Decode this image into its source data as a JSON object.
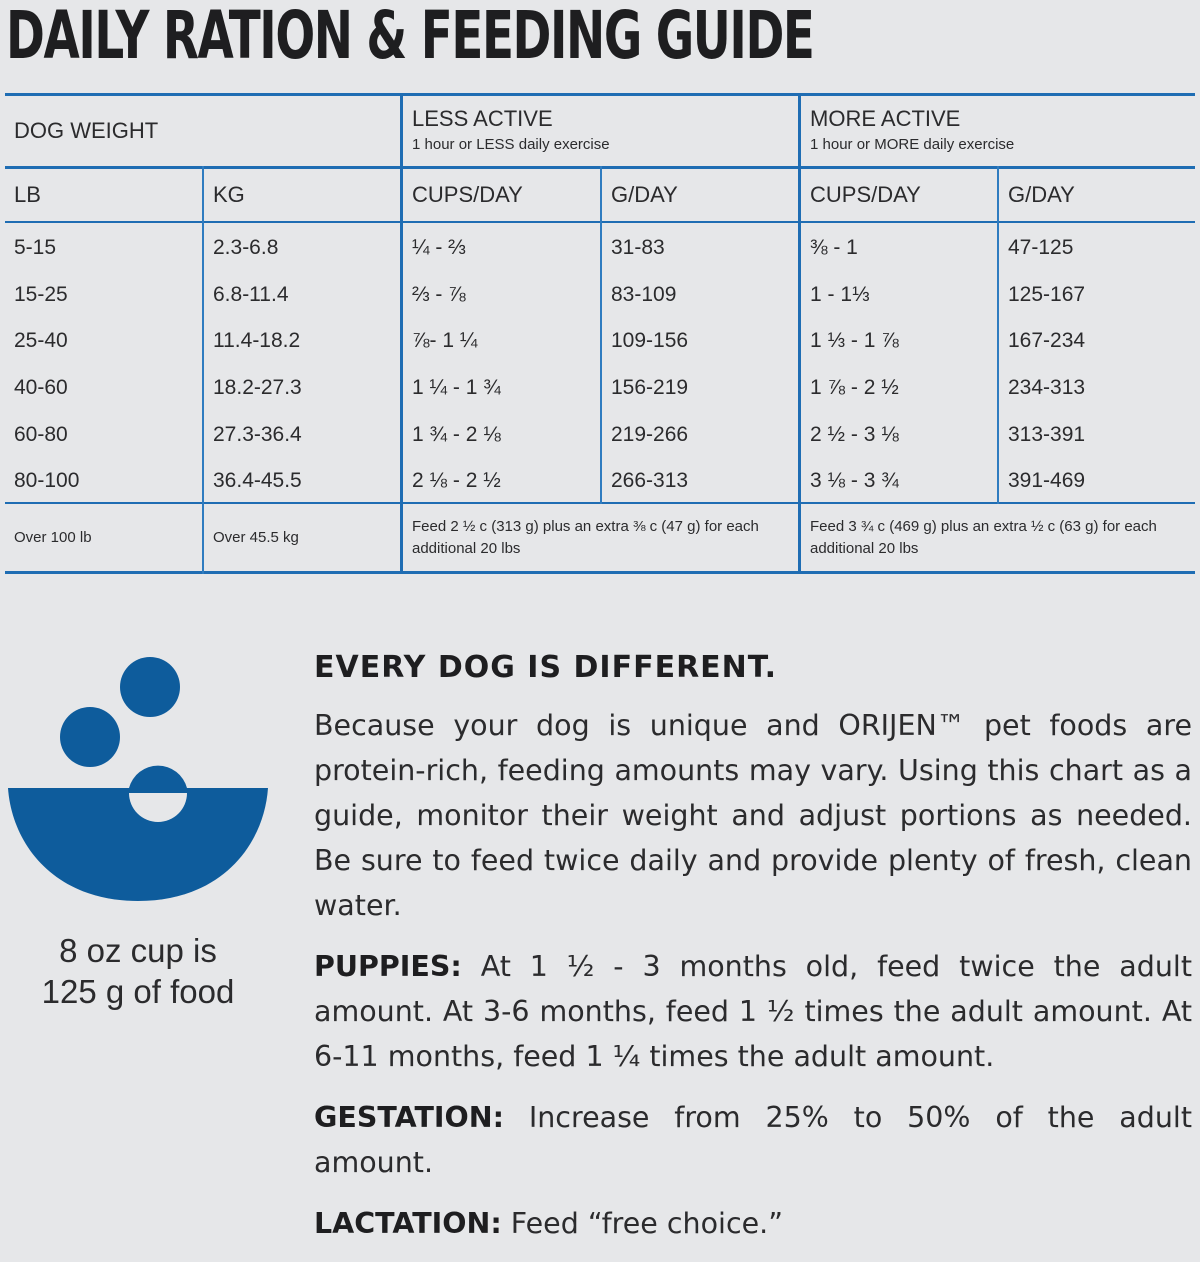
{
  "title": "DAILY RATION & FEEDING GUIDE",
  "table": {
    "group_headers": {
      "dog_weight": "DOG WEIGHT",
      "less_active": {
        "title": "LESS ACTIVE",
        "subtitle": "1 hour or LESS daily exercise"
      },
      "more_active": {
        "title": "MORE ACTIVE",
        "subtitle": "1 hour or MORE daily exercise"
      }
    },
    "columns": [
      "LB",
      "KG",
      "CUPS/DAY",
      "G/DAY",
      "CUPS/DAY",
      "G/DAY"
    ],
    "rows": [
      [
        "5-15",
        "2.3-6.8",
        "¼ - ⅔",
        "31-83",
        "⅜ - 1",
        "47-125"
      ],
      [
        "15-25",
        "6.8-11.4",
        "⅔ - ⅞",
        "83-109",
        "1 - 1⅓",
        "125-167"
      ],
      [
        "25-40",
        "11.4-18.2",
        "⅞- 1 ¼",
        "109-156",
        "1 ⅓ - 1 ⅞",
        "167-234"
      ],
      [
        "40-60",
        "18.2-27.3",
        "1 ¼ - 1 ¾",
        "156-219",
        "1 ⅞ - 2 ½",
        "234-313"
      ],
      [
        "60-80",
        "27.3-36.4",
        "1 ¾ - 2 ⅛",
        "219-266",
        "2 ½ - 3 ⅛",
        "313-391"
      ],
      [
        "80-100",
        "36.4-45.5",
        "2 ⅛ - 2 ½",
        "266-313",
        "3 ⅛ - 3 ¾",
        "391-469"
      ]
    ],
    "over_row": {
      "lb": "Over 100 lb",
      "kg": "Over 45.5 kg",
      "less_active": "Feed 2 ½ c (313 g) plus an extra ⅜ c (47 g) for each additional 20 lbs",
      "more_active": "Feed 3 ¾ c (469 g) plus an extra ½ c (63 g) for each additional 20 lbs"
    }
  },
  "cup_note": {
    "line1": "8 oz cup is",
    "line2": "125 g of food"
  },
  "colors": {
    "accent": "#1f6db3",
    "icon": "#0e5c9c",
    "background": "#e6e7e9",
    "text": "#2b2b2d"
  },
  "icon": "food-bowl-icon",
  "guide": {
    "heading": "EVERY DOG IS DIFFERENT.",
    "intro": "Because your dog is unique and ORIJEN™ pet foods are protein-rich, feeding amounts may vary. Using this chart as a guide, monitor their weight and adjust portions as needed. Be sure to feed twice daily and provide plenty of fresh, clean water.",
    "puppies_label": "PUPPIES:",
    "puppies_text": "At 1 ½ - 3 months old, feed twice the adult amount. At 3-6 months, feed 1 ½ times the adult amount. At 6-11 months, feed 1 ¼ times the adult amount.",
    "gestation_label": "GESTATION:",
    "gestation_text": "Increase from 25% to 50% of the adult amount.",
    "lactation_label": "LACTATION:",
    "lactation_text": "Feed “free choice.”"
  }
}
